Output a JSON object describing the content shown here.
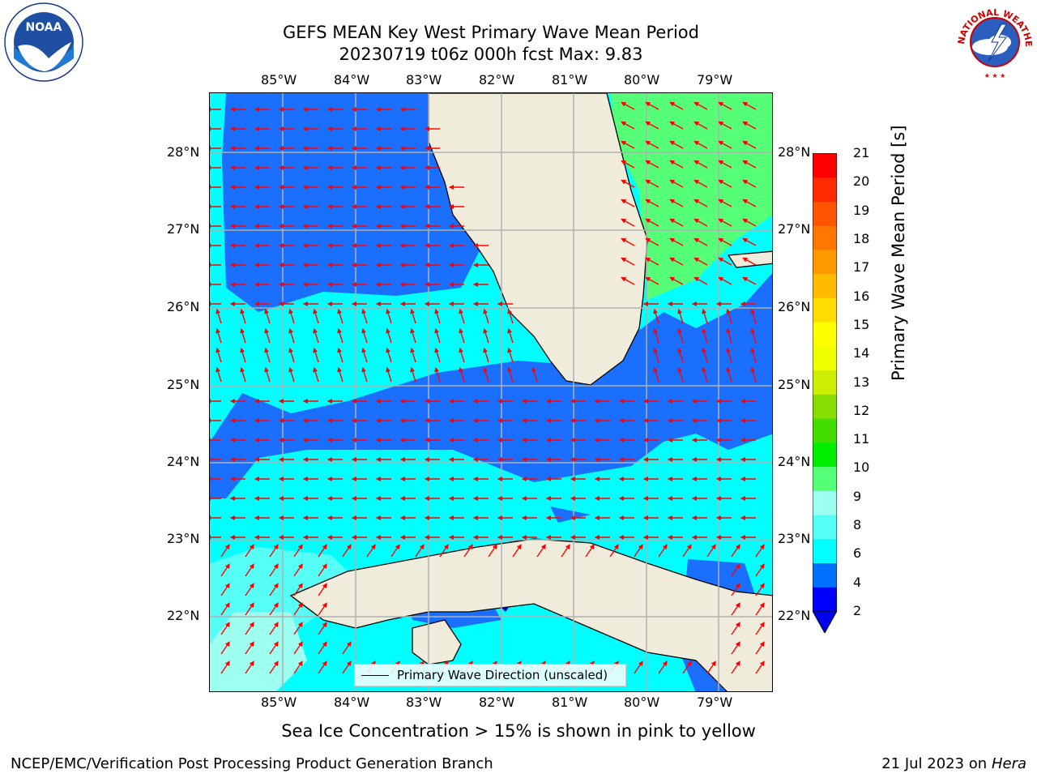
{
  "title": {
    "line1": "GEFS MEAN Key West Primary Wave Mean Period",
    "line2": "20230719 t06z 000h fcst   Max: 9.83"
  },
  "logos": {
    "left": {
      "icon": "noaa-logo",
      "text": "NOAA"
    },
    "right": {
      "icon": "nws-logo",
      "text": "NATIONAL WEATHER SERVICE"
    }
  },
  "map": {
    "lon_ticks": [
      "85°W",
      "84°W",
      "83°W",
      "82°W",
      "81°W",
      "80°W",
      "79°W"
    ],
    "lat_ticks": [
      "28°N",
      "27°N",
      "26°N",
      "25°N",
      "24°N",
      "23°N",
      "22°N"
    ],
    "land_color": "#efecdc",
    "arrow_color": "#ff0000",
    "field_colors": {
      "2-4": "#1a6fff",
      "4-6": "#00ffff",
      "6-8": "#55fff5",
      "8-9": "#9dfff0",
      "9-10": "#55ff78",
      "below-2": "#0000ee"
    }
  },
  "legend": {
    "label": "Primary Wave Direction (unscaled)"
  },
  "colorbar": {
    "label": "Primary Wave Mean Period [s]",
    "ticks": [
      "21",
      "20",
      "19",
      "18",
      "17",
      "16",
      "15",
      "14",
      "13",
      "12",
      "11",
      "10",
      "9",
      "8",
      "6",
      "4",
      "2"
    ],
    "colors": [
      "#0000ff",
      "#0070ff",
      "#00ffff",
      "#55fff5",
      "#9dfff0",
      "#55ff78",
      "#00ee00",
      "#44dd00",
      "#88dd00",
      "#ccee00",
      "#eeff00",
      "#ffff00",
      "#ffdd00",
      "#ffbb00",
      "#ff9900",
      "#ff7700",
      "#ff5500",
      "#ff2a00",
      "#ff0000"
    ]
  },
  "subtitle": "Sea Ice Concentration > 15% is shown in pink to yellow",
  "footer": {
    "left": "NCEP/EMC/Verification Post Processing Product Generation Branch",
    "right_prefix": "21 Jul 2023 on ",
    "right_machine": "Hera"
  }
}
